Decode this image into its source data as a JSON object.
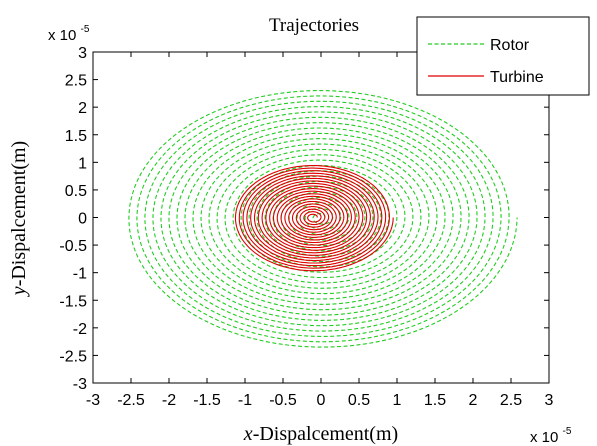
{
  "chart_data": {
    "type": "line",
    "title": "Trajectories",
    "xlabel": {
      "var": "x",
      "rest": "-Dispalcement(m)"
    },
    "ylabel": {
      "var": "y",
      "rest": "-Dispalcement(m)"
    },
    "axis_multiplier": {
      "base": "x 10",
      "exponent": "-5"
    },
    "xlim": [
      -3,
      3
    ],
    "ylim": [
      -3,
      3
    ],
    "xticks": [
      "-3",
      "-2.5",
      "-2",
      "-1.5",
      "-1",
      "-0.5",
      "0",
      "0.5",
      "1",
      "1.5",
      "2",
      "2.5",
      "3"
    ],
    "yticks": [
      "3",
      "2.5",
      "2",
      "1.5",
      "1",
      "0.5",
      "0",
      "-0.5",
      "-1",
      "-1.5",
      "-2",
      "-2.5",
      "-3"
    ],
    "grid": false,
    "legend_position": "top-right",
    "series": [
      {
        "name": "Rotor",
        "style": "dashed",
        "color": "#22cc22",
        "shape": "spiral",
        "center": [
          0,
          0
        ],
        "radius_start": 0.05,
        "radius_end": 2.58,
        "y_scale": 0.92,
        "turns": 24
      },
      {
        "name": "Turbine",
        "style": "solid",
        "color": "#dd0000",
        "shape": "spiral",
        "center": [
          -0.1,
          0
        ],
        "radius_start": 0.05,
        "radius_end": 1.05,
        "y_scale": 0.93,
        "turns": 20
      }
    ]
  }
}
